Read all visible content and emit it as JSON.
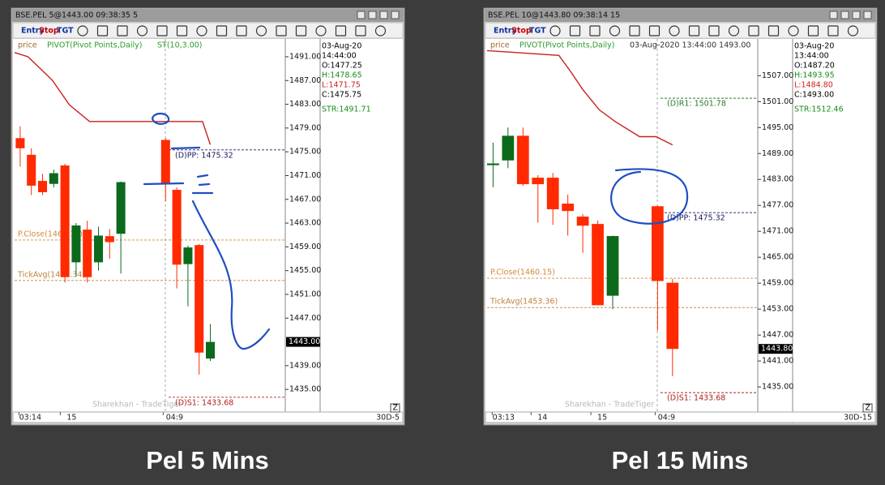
{
  "chart_data": [
    {
      "type": "candlestick",
      "window_title": "BSE.PEL 5@1443.00 09:38:35 5",
      "toolbar": [
        "Entry",
        "Stop",
        "TGT"
      ],
      "legend": [
        {
          "text": "price",
          "color": "#a0662a"
        },
        {
          "text": "PIVOT(Pivot Points,Daily)",
          "color": "#2a9a2a"
        },
        {
          "text": "ST(10,3.00)",
          "color": "#2a9a2a"
        }
      ],
      "info": [
        {
          "text": "03-Aug-20",
          "color": "#000000"
        },
        {
          "text": "14:44:00",
          "color": "#000000"
        },
        {
          "text": "O:1477.25",
          "color": "#000000"
        },
        {
          "text": "H:1478.65",
          "color": "#1a8a1a"
        },
        {
          "text": "L:1471.75",
          "color": "#d02020"
        },
        {
          "text": "C:1475.75",
          "color": "#000000"
        },
        {
          "text": "STR:1491.71",
          "color": "#1a8a1a"
        }
      ],
      "x": [
        0,
        1,
        2,
        3,
        4,
        5,
        6,
        7,
        8,
        9,
        13,
        14,
        15,
        16,
        17
      ],
      "open": [
        1477.3,
        1474.5,
        1470.1,
        1469.6,
        1472.7,
        1456.4,
        1461.9,
        1456.4,
        1460.8,
        1461.2,
        1477.0,
        1468.6,
        1456.1,
        1459.3,
        1440.2
      ],
      "high": [
        1479.3,
        1475.6,
        1471.3,
        1472.0,
        1473.0,
        1463.0,
        1463.4,
        1462.4,
        1462.0,
        1470.0,
        1477.3,
        1469.0,
        1459.2,
        1459.5,
        1446.0
      ],
      "low": [
        1472.5,
        1467.7,
        1467.7,
        1469.0,
        1453.0,
        1454.0,
        1453.0,
        1455.0,
        1457.0,
        1454.5,
        1466.7,
        1452.0,
        1449.0,
        1437.5,
        1439.8
      ],
      "close": [
        1475.6,
        1469.3,
        1468.2,
        1471.4,
        1453.9,
        1462.6,
        1453.9,
        1460.9,
        1459.8,
        1469.9,
        1469.6,
        1456.0,
        1458.9,
        1441.2,
        1443.0
      ],
      "up_color": "#0b6a1c",
      "down_color": "#ff2a00",
      "supertrend": {
        "color": "#c82020",
        "x": [
          -0.5,
          0.7,
          1.8,
          2.9,
          4.4,
          6.2,
          16.3,
          17
        ],
        "values": [
          1491.7,
          1491.0,
          1489.0,
          1487.0,
          1482.9,
          1480.1,
          1480.1,
          1476.2
        ]
      },
      "levels": [
        {
          "label": "(D)PP: 1475.32",
          "value": 1475.32,
          "color": "#1a1a60"
        },
        {
          "label": "P.Close(1460.15)",
          "value": 1460.15,
          "color": "#d08a3a"
        },
        {
          "label": "TickAvg(1453.34)",
          "value": 1453.34,
          "color": "#c08040"
        },
        {
          "label": "(D)S1: 1433.68",
          "value": 1433.68,
          "color": "#b02020"
        }
      ],
      "last": {
        "value": 1443.0,
        "label": "1443.00"
      },
      "ylim": [
        1431.2,
        1494.0
      ],
      "yticks": [
        {
          "value": 1491,
          "label": "1491.00"
        },
        {
          "value": 1487,
          "label": "1487.00"
        },
        {
          "value": 1483,
          "label": "1483.00"
        },
        {
          "value": 1479,
          "label": "1479.00"
        },
        {
          "value": 1475,
          "label": "1475.00"
        },
        {
          "value": 1471,
          "label": "1471.00"
        },
        {
          "value": 1467,
          "label": "1467.00"
        },
        {
          "value": 1463,
          "label": "1463.00"
        },
        {
          "value": 1459,
          "label": "1459.00"
        },
        {
          "value": 1455,
          "label": "1455.00"
        },
        {
          "value": 1451,
          "label": "1451.00"
        },
        {
          "value": 1447,
          "label": "1447.00"
        },
        {
          "value": 1439,
          "label": "1439.00"
        },
        {
          "value": 1435,
          "label": "1435.00"
        }
      ],
      "xlim": [
        -0.5,
        23.7
      ],
      "xticks": [
        {
          "value": 0.9,
          "label": "03:14"
        },
        {
          "value": 4.6,
          "label": "15"
        },
        {
          "value": 13.8,
          "label": "04:9"
        }
      ],
      "watermark": "Sharekhan - TradeTiger",
      "zoom_button": "Z",
      "period_label": "30D-5",
      "caption": "Pel 5 Mins"
    },
    {
      "type": "candlestick",
      "window_title": "BSE.PEL 10@1443.80 09:38:14 15",
      "toolbar": [
        "Entry",
        "Stop",
        "TGT"
      ],
      "legend": [
        {
          "text": "price",
          "color": "#a0662a"
        },
        {
          "text": "PIVOT(Pivot Points,Daily)",
          "color": "#2a9a2a"
        },
        {
          "text": "03-Aug-2020  13:44:00  1493.00",
          "color": "#303030"
        }
      ],
      "info": [
        {
          "text": "03-Aug-20",
          "color": "#000000"
        },
        {
          "text": "13:44:00",
          "color": "#000000"
        },
        {
          "text": "O:1487.20",
          "color": "#000000"
        },
        {
          "text": "H:1493.95",
          "color": "#1a8a1a"
        },
        {
          "text": "L:1484.80",
          "color": "#d02020"
        },
        {
          "text": "C:1493.00",
          "color": "#000000"
        },
        {
          "text": "STR:1512.46",
          "color": "#1a8a1a"
        }
      ],
      "x": [
        0,
        1,
        2,
        3,
        4,
        5,
        6,
        7,
        8,
        11,
        12
      ],
      "open": [
        1486.3,
        1487.4,
        1493.1,
        1483.4,
        1483.4,
        1477.4,
        1474.4,
        1472.7,
        1456.1,
        1476.8,
        1459.1
      ],
      "high": [
        1491.5,
        1495.0,
        1495.0,
        1484.0,
        1484.5,
        1479.5,
        1475.0,
        1473.5,
        1470.0,
        1477.0,
        1460.0
      ],
      "low": [
        1481.2,
        1485.6,
        1481.5,
        1473.0,
        1472.5,
        1470.0,
        1466.0,
        1453.9,
        1453.0,
        1448.0,
        1437.5
      ],
      "close": [
        1486.7,
        1493.1,
        1481.9,
        1481.9,
        1476.1,
        1475.7,
        1472.3,
        1453.9,
        1469.9,
        1459.5,
        1443.8
      ],
      "up_color": "#0b6a1c",
      "down_color": "#ff2a00",
      "supertrend": {
        "color": "#c82020",
        "x": [
          -0.4,
          4.4,
          5.2,
          6.0,
          7.1,
          8.2,
          9.8,
          10.9,
          12
        ],
        "values": [
          1512.8,
          1511.7,
          1507.9,
          1503.8,
          1499.1,
          1496.3,
          1492.9,
          1492.9,
          1491.0
        ]
      },
      "levels": [
        {
          "label": "(D)R1: 1501.78",
          "value": 1501.78,
          "color": "#2a7a2a"
        },
        {
          "label": "(D)PP: 1475.32",
          "value": 1475.32,
          "color": "#1a1a60"
        },
        {
          "label": "P.Close(1460.15)",
          "value": 1460.15,
          "color": "#d08a3a"
        },
        {
          "label": "TickAvg(1453.36)",
          "value": 1453.36,
          "color": "#c08040"
        },
        {
          "label": "(D)S1: 1433.68",
          "value": 1433.68,
          "color": "#b02020"
        }
      ],
      "last": {
        "value": 1443.8,
        "label": "1443.80"
      },
      "ylim": [
        1429.2,
        1515.5
      ],
      "yticks": [
        {
          "value": 1507,
          "label": "1507.00"
        },
        {
          "value": 1501,
          "label": "1501.00"
        },
        {
          "value": 1495,
          "label": "1495.00"
        },
        {
          "value": 1489,
          "label": "1489.00"
        },
        {
          "value": 1483,
          "label": "1483.00"
        },
        {
          "value": 1477,
          "label": "1477.00"
        },
        {
          "value": 1471,
          "label": "1471.00"
        },
        {
          "value": 1465,
          "label": "1465.00"
        },
        {
          "value": 1459,
          "label": "1459.00"
        },
        {
          "value": 1453,
          "label": "1453.00"
        },
        {
          "value": 1447,
          "label": "1447.00"
        },
        {
          "value": 1441,
          "label": "1441.00"
        },
        {
          "value": 1435,
          "label": "1435.00"
        }
      ],
      "xlim": [
        -0.4,
        17.7
      ],
      "xticks": [
        {
          "value": 0.7,
          "label": "03:13"
        },
        {
          "value": 3.3,
          "label": "14"
        },
        {
          "value": 7.3,
          "label": "15"
        },
        {
          "value": 11.6,
          "label": "04:9"
        }
      ],
      "watermark": "Sharekhan - TradeTiger",
      "zoom_button": "Z",
      "period_label": "30D-15",
      "caption": "Pel 15 Mins"
    }
  ]
}
